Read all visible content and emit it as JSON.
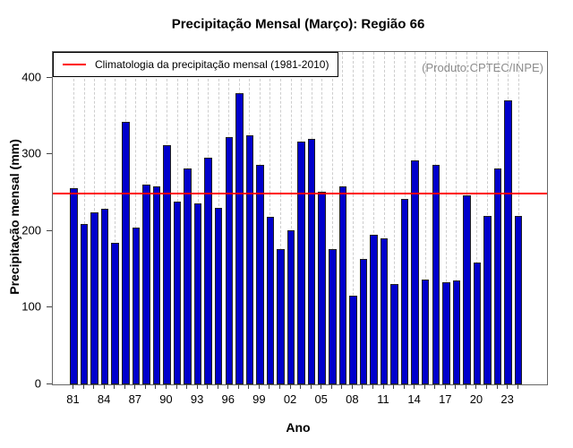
{
  "chart_data": {
    "type": "bar",
    "title": "Precipitação Mensal (Março): Região 66",
    "xlabel": "Ano",
    "ylabel": "Precipitação mensal (mm)",
    "annotation": "(Produto:CPTEC/INPE)",
    "ylim": [
      0,
      433
    ],
    "yticks": [
      0,
      100,
      200,
      300,
      400
    ],
    "grid": "vertical-dashed",
    "legend_position": "top-left",
    "xtick_labels": [
      "81",
      "84",
      "87",
      "90",
      "93",
      "96",
      "99",
      "02",
      "05",
      "08",
      "11",
      "14",
      "17",
      "20",
      "23"
    ],
    "years": [
      1981,
      1982,
      1983,
      1984,
      1985,
      1986,
      1987,
      1988,
      1989,
      1990,
      1991,
      1992,
      1993,
      1994,
      1995,
      1996,
      1997,
      1998,
      1999,
      2000,
      2001,
      2002,
      2003,
      2004,
      2005,
      2006,
      2007,
      2008,
      2009,
      2010,
      2011,
      2012,
      2013,
      2014,
      2015,
      2016,
      2017,
      2018,
      2019,
      2020,
      2021,
      2022,
      2023,
      2024
    ],
    "values": [
      256,
      209,
      224,
      229,
      185,
      342,
      205,
      261,
      258,
      312,
      238,
      281,
      236,
      295,
      230,
      322,
      380,
      325,
      286,
      219,
      176,
      201,
      317,
      320,
      251,
      176,
      258,
      116,
      164,
      195,
      190,
      131,
      242,
      292,
      137,
      286,
      133,
      136,
      247,
      159,
      220,
      281,
      370,
      220
    ],
    "legend": {
      "label": "Climatologia da precipitação mensal (1981-2010)",
      "value": 249
    },
    "colors": {
      "bar": "#0000cc",
      "bar_border": "#1f1f1f",
      "climatology_line": "#ff0000",
      "grid": "#cdcdcd",
      "frame": "#666666",
      "tick": "#444444",
      "annotation": "#8c8c8c",
      "text": "#000000"
    }
  }
}
